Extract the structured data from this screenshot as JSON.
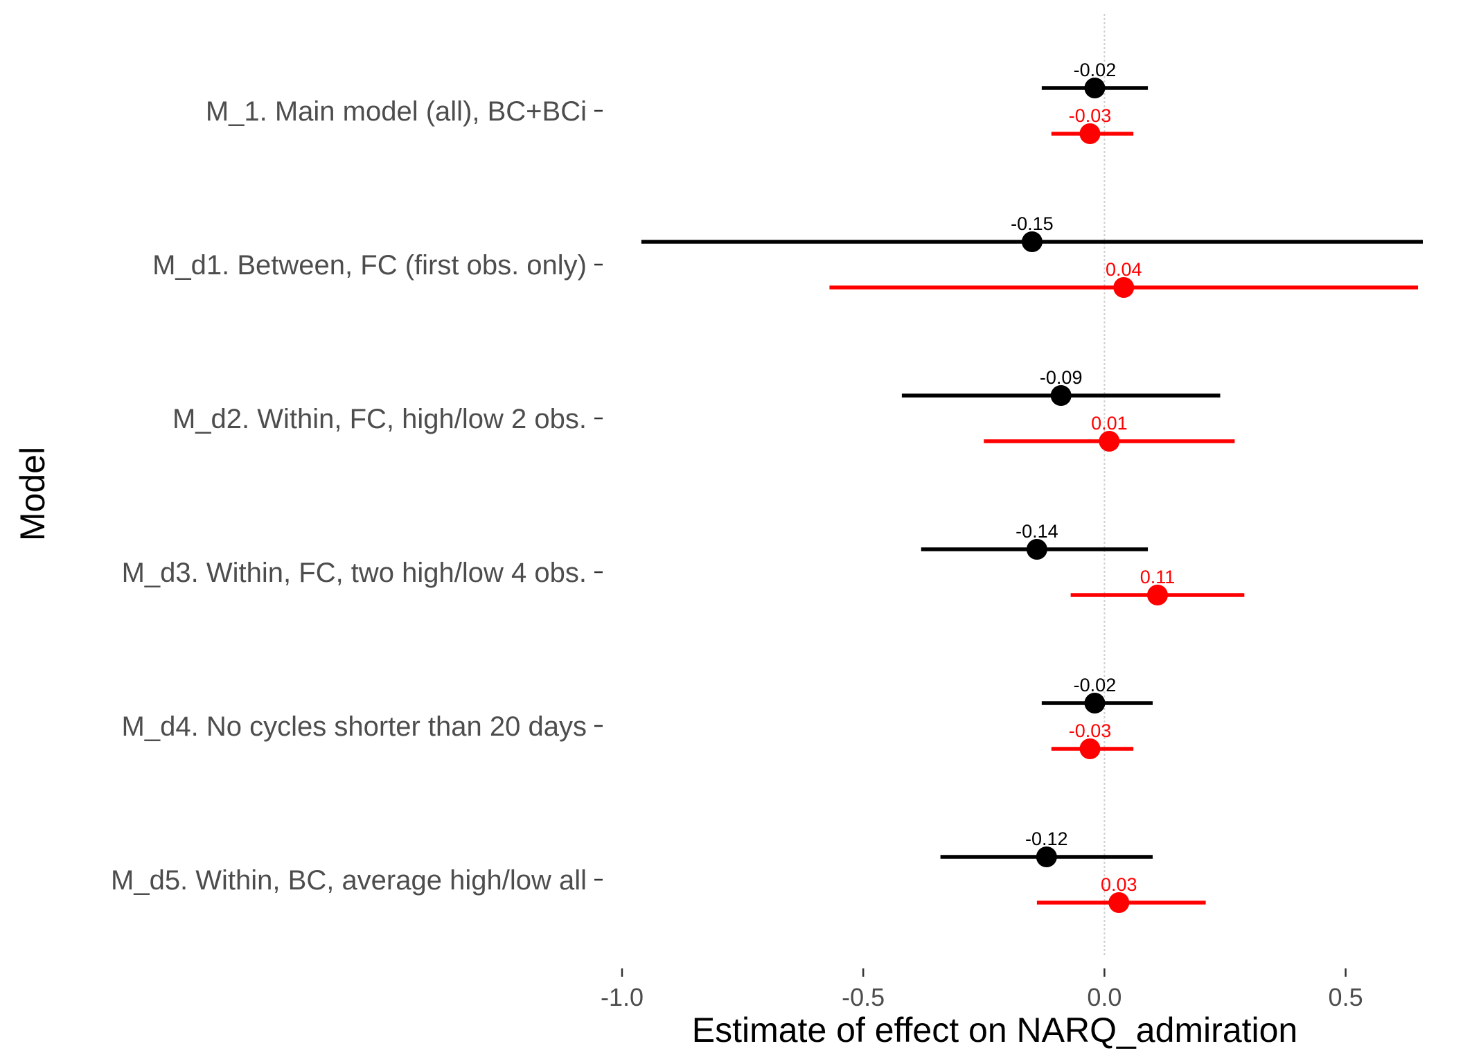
{
  "chart_data": {
    "type": "scatter",
    "subtype": "forest-plot",
    "xlabel": "Estimate of effect on NARQ_admiration",
    "ylabel": "Model",
    "xlim": [
      -1.0,
      0.66
    ],
    "xticks": [
      -1.0,
      -0.5,
      0.0,
      0.5
    ],
    "xtick_labels": [
      "-1.0",
      "-0.5",
      "0.0",
      "0.5"
    ],
    "reference_line": 0.0,
    "grid": false,
    "legend": "none",
    "colors": {
      "black_series": "#000000",
      "red_series": "#ff0000",
      "reference_line": "#cfcfcf"
    },
    "categories": [
      "M_1. Main model (all), BC+BCi",
      "M_d1. Between, FC (first obs. only)",
      "M_d2. Within, FC, high/low 2 obs.",
      "M_d3. Within, FC, two high/low 4 obs.",
      "M_d4. No cycles shorter than 20 days",
      "M_d5. Within, BC, average high/low all"
    ],
    "series": [
      {
        "color": "#000000",
        "estimates": [
          -0.02,
          -0.15,
          -0.09,
          -0.14,
          -0.02,
          -0.12
        ],
        "labels": [
          "-0.02",
          "-0.15",
          "-0.09",
          "-0.14",
          "-0.02",
          "-0.12"
        ],
        "lower": [
          -0.13,
          -0.96,
          -0.42,
          -0.38,
          -0.13,
          -0.34
        ],
        "upper": [
          0.09,
          0.66,
          0.24,
          0.09,
          0.1,
          0.1
        ]
      },
      {
        "color": "#ff0000",
        "estimates": [
          -0.03,
          0.04,
          0.01,
          0.11,
          -0.03,
          0.03
        ],
        "labels": [
          "-0.03",
          "0.04",
          "0.01",
          "0.11",
          "-0.03",
          "0.03"
        ],
        "lower": [
          -0.11,
          -0.57,
          -0.25,
          -0.07,
          -0.11,
          -0.14
        ],
        "upper": [
          0.06,
          0.65,
          0.27,
          0.29,
          0.06,
          0.21
        ]
      }
    ]
  }
}
